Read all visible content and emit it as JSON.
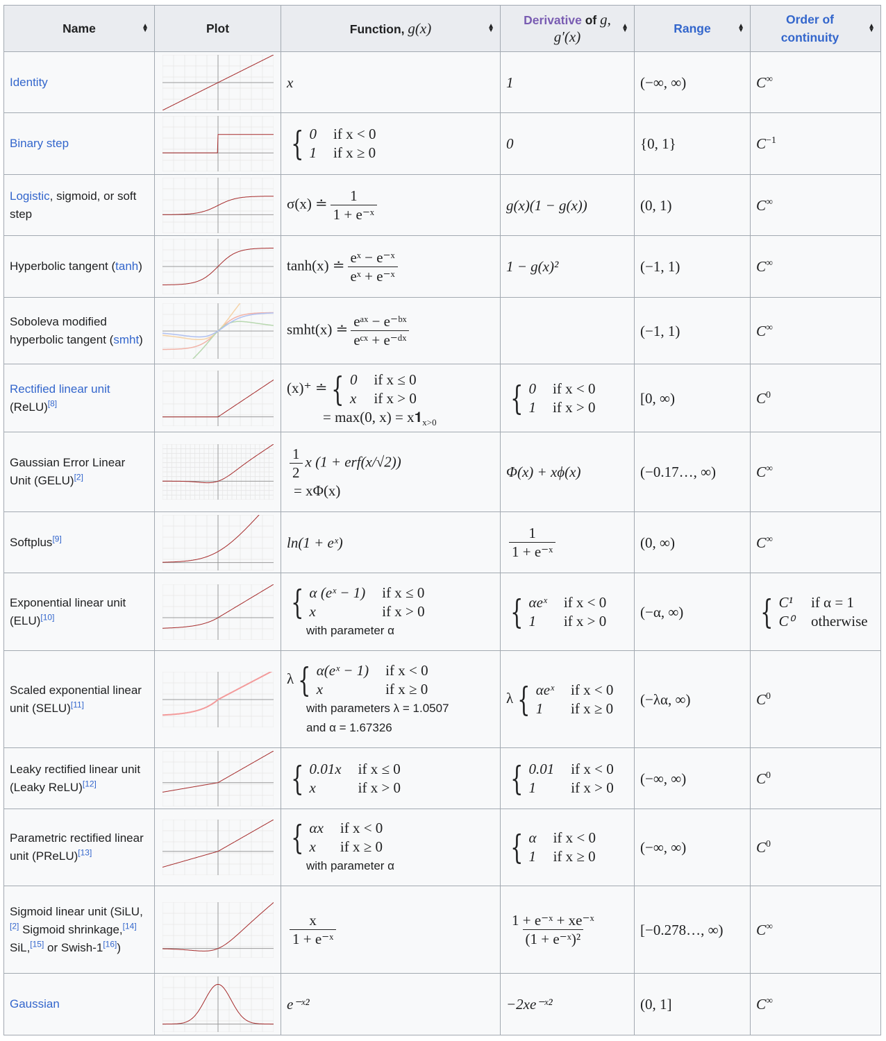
{
  "header": {
    "name": "Name",
    "plot": "Plot",
    "function_label": "Function, ",
    "function_math": "g(x)",
    "derivative_link": "Derivative",
    "derivative_of": " of ",
    "derivative_g": "g,",
    "derivative_math": "g′(x)",
    "range": "Range",
    "continuity": "Order of continuity",
    "sort_icon": "sort-arrows-icon"
  },
  "colors": {
    "link": "#3366cc",
    "visited_link": "#795cb2",
    "header_bg": "#eaecf0",
    "cell_bg": "#f8f9fa",
    "border": "#a2a9b1",
    "curve": "#a52a2a"
  },
  "rows": [
    {
      "name": [
        {
          "t": "Identity",
          "link": true
        }
      ],
      "plot": "identity",
      "func": {
        "text": "x"
      },
      "deriv": {
        "text": "1"
      },
      "range": "(−∞, ∞)",
      "cont": {
        "base": "C",
        "sup": "∞"
      }
    },
    {
      "name": [
        {
          "t": "Binary step",
          "link": true
        }
      ],
      "plot": "step",
      "func": {
        "cases": [
          [
            "0",
            "if x < 0"
          ],
          [
            "1",
            "if x ≥ 0"
          ]
        ]
      },
      "deriv": {
        "text": "0"
      },
      "range": "{0, 1}",
      "cont": {
        "base": "C",
        "sup": "−1"
      }
    },
    {
      "name": [
        {
          "t": "Logistic",
          "link": true
        },
        {
          "t": ", sigmoid, or soft step"
        }
      ],
      "plot": "logistic",
      "func": {
        "pre": "σ(x) ≐",
        "num": "1",
        "den": "1 + e⁻ˣ"
      },
      "deriv": {
        "text": "g(x)(1 − g(x))"
      },
      "range": "(0, 1)",
      "cont": {
        "base": "C",
        "sup": "∞"
      }
    },
    {
      "name": [
        {
          "t": "Hyperbolic tangent ("
        },
        {
          "t": "tanh",
          "link": true
        },
        {
          "t": ")"
        }
      ],
      "plot": "tanh",
      "func": {
        "pre": "tanh(x) ≐",
        "num": "eˣ − e⁻ˣ",
        "den": "eˣ + e⁻ˣ"
      },
      "deriv": {
        "text": "1 − g(x)²"
      },
      "range": "(−1, 1)",
      "cont": {
        "base": "C",
        "sup": "∞"
      }
    },
    {
      "name": [
        {
          "t": "Soboleva modified hyperbolic tangent ("
        },
        {
          "t": "smht",
          "link": true
        },
        {
          "t": ")"
        }
      ],
      "plot": "smht",
      "func": {
        "pre": "smht(x) ≐",
        "num": "eᵃˣ − e⁻ᵇˣ",
        "den": "eᶜˣ + e⁻ᵈˣ"
      },
      "deriv": {
        "text": ""
      },
      "range": "(−1, 1)",
      "cont": {
        "base": "C",
        "sup": "∞"
      }
    },
    {
      "name": [
        {
          "t": "Rectified linear unit",
          "link": true
        },
        {
          "t": " (ReLU)"
        },
        {
          "t": "[8]",
          "sup": true
        }
      ],
      "plot": "relu",
      "func": {
        "pre": "(x)⁺ ≐",
        "cases": [
          [
            "0",
            "if x ≤ 0"
          ],
          [
            "x",
            "if x > 0"
          ]
        ],
        "after": "= max(0, x) = x𝟏",
        "after_sub": "x>0"
      },
      "deriv": {
        "cases": [
          [
            "0",
            "if x < 0"
          ],
          [
            "1",
            "if x > 0"
          ]
        ]
      },
      "range": "[0, ∞)",
      "cont": {
        "base": "C",
        "sup": "0"
      }
    },
    {
      "name": [
        {
          "t": "Gaussian Error Linear Unit (GELU)"
        },
        {
          "t": "[2]",
          "sup": true
        }
      ],
      "plot": "gelu",
      "func": {
        "num": "1",
        "den": "2",
        "post": "x (1 + erf(x/√2))",
        "after": "= xΦ(x)"
      },
      "deriv": {
        "text": "Φ(x) + xϕ(x)"
      },
      "range": "(−0.17…, ∞)",
      "cont": {
        "base": "C",
        "sup": "∞"
      }
    },
    {
      "name": [
        {
          "t": "Softplus"
        },
        {
          "t": "[9]",
          "sup": true
        }
      ],
      "plot": "softplus",
      "func": {
        "text": "ln(1 + eˣ)"
      },
      "deriv": {
        "num": "1",
        "den": "1 + e⁻ˣ"
      },
      "range": "(0, ∞)",
      "cont": {
        "base": "C",
        "sup": "∞"
      }
    },
    {
      "name": [
        {
          "t": "Exponential linear unit (ELU)"
        },
        {
          "t": "[10]",
          "sup": true
        }
      ],
      "plot": "elu",
      "func": {
        "cases": [
          [
            "α (eˣ − 1)",
            "if x ≤ 0"
          ],
          [
            "x",
            "if x > 0"
          ]
        ],
        "notes": [
          "with parameter α"
        ]
      },
      "deriv": {
        "cases": [
          [
            "αeˣ",
            "if x < 0"
          ],
          [
            "1",
            "if x > 0"
          ]
        ]
      },
      "range": "(−α, ∞)",
      "cont": {
        "cases": [
          [
            "C¹",
            "if α = 1"
          ],
          [
            "C⁰",
            "otherwise"
          ]
        ]
      }
    },
    {
      "name": [
        {
          "t": "Scaled exponential linear unit (SELU)"
        },
        {
          "t": "[11]",
          "sup": true
        }
      ],
      "plot": "selu",
      "func": {
        "pre": "λ",
        "cases": [
          [
            "α(eˣ − 1)",
            "if x < 0"
          ],
          [
            "x",
            "if x ≥ 0"
          ]
        ],
        "notes": [
          "with parameters λ = 1.0507",
          "and α = 1.67326"
        ]
      },
      "deriv": {
        "pre": "λ",
        "cases": [
          [
            "αeˣ",
            "if x < 0"
          ],
          [
            "1",
            "if x ≥ 0"
          ]
        ]
      },
      "range": "(−λα, ∞)",
      "cont": {
        "base": "C",
        "sup": "0"
      }
    },
    {
      "name": [
        {
          "t": "Leaky rectified linear unit (Leaky ReLU)"
        },
        {
          "t": "[12]",
          "sup": true
        }
      ],
      "plot": "leaky",
      "func": {
        "cases": [
          [
            "0.01x",
            "if x ≤ 0"
          ],
          [
            "x",
            "if x > 0"
          ]
        ]
      },
      "deriv": {
        "cases": [
          [
            "0.01",
            "if x < 0"
          ],
          [
            "1",
            "if x > 0"
          ]
        ]
      },
      "range": "(−∞, ∞)",
      "cont": {
        "base": "C",
        "sup": "0"
      }
    },
    {
      "name": [
        {
          "t": "Parametric rectified linear unit (PReLU)"
        },
        {
          "t": "[13]",
          "sup": true
        }
      ],
      "plot": "prelu",
      "func": {
        "cases": [
          [
            "αx",
            "if x < 0"
          ],
          [
            "x",
            "if x ≥ 0"
          ]
        ],
        "notes": [
          "with parameter α"
        ]
      },
      "deriv": {
        "cases": [
          [
            "α",
            "if x < 0"
          ],
          [
            "1",
            "if x ≥ 0"
          ]
        ]
      },
      "range": "(−∞, ∞)",
      "cont": {
        "base": "C",
        "sup": "0"
      }
    },
    {
      "name": [
        {
          "t": "Sigmoid linear unit (SiLU,"
        },
        {
          "t": "[2]",
          "sup": true
        },
        {
          "t": " Sigmoid shrinkage,"
        },
        {
          "t": "[14]",
          "sup": true
        },
        {
          "t": " SiL,"
        },
        {
          "t": "[15]",
          "sup": true
        },
        {
          "t": " or Swish‑1"
        },
        {
          "t": "[16]",
          "sup": true
        },
        {
          "t": ")"
        }
      ],
      "plot": "silu",
      "func": {
        "num": "x",
        "den": "1 + e⁻ˣ"
      },
      "deriv": {
        "num": "1 + e⁻ˣ + xe⁻ˣ",
        "den": "(1 + e⁻ˣ)²"
      },
      "range": "[−0.278…, ∞)",
      "cont": {
        "base": "C",
        "sup": "∞"
      }
    },
    {
      "name": [
        {
          "t": "Gaussian",
          "link": true
        }
      ],
      "plot": "gaussian",
      "func": {
        "text": "e⁻ˣ²"
      },
      "deriv": {
        "text": "−2xe⁻ˣ²"
      },
      "range": "(0, 1]",
      "cont": {
        "base": "C",
        "sup": "∞"
      }
    }
  ]
}
